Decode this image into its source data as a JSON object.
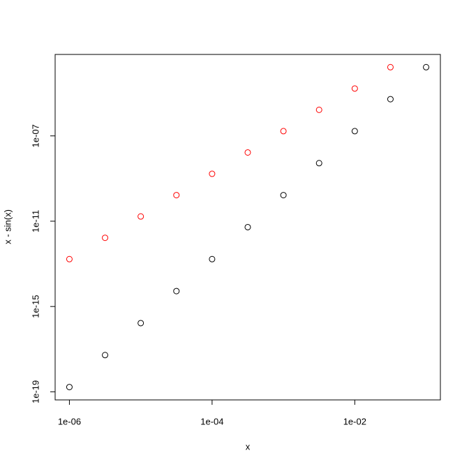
{
  "chart_data": {
    "type": "scatter",
    "xlabel": "x",
    "ylabel": "x - sin(x)",
    "xscale": "log",
    "yscale": "log",
    "xlim": [
      6.31e-07,
      0.1585
    ],
    "ylim": [
      4.17e-20,
      0.00066
    ],
    "xticks": [
      {
        "value": 1e-06,
        "label": "1e-06"
      },
      {
        "value": 0.0001,
        "label": "1e-04"
      },
      {
        "value": 0.01,
        "label": "1e-02"
      }
    ],
    "yticks": [
      {
        "value": 1e-19,
        "label": "1e-19"
      },
      {
        "value": 1e-15,
        "label": "1e-15"
      },
      {
        "value": 1e-11,
        "label": "1e-11"
      },
      {
        "value": 1e-07,
        "label": "1e-07"
      }
    ],
    "series": [
      {
        "color": "#000000",
        "x": [
          1e-06,
          3.162e-06,
          1e-05,
          3.162e-05,
          0.0001,
          0.0003162,
          0.001,
          0.003162,
          0.01,
          0.03162,
          0.1
        ],
        "values": [
          1.667e-19,
          5.27e-18,
          1.667e-16,
          5.27e-15,
          1.667e-13,
          5.27e-12,
          1.667e-10,
          5.27e-09,
          1.667e-07,
          5.27e-06,
          0.0001666
        ]
      },
      {
        "color": "#ff0000",
        "x": [
          1e-06,
          3.162e-06,
          1e-05,
          3.162e-05,
          0.0001,
          0.0003162,
          0.001,
          0.003162,
          0.01,
          0.03162
        ],
        "values": [
          1.667e-13,
          1.667e-12,
          1.667e-11,
          1.667e-10,
          1.667e-09,
          1.667e-08,
          1.667e-07,
          1.667e-06,
          1.667e-05,
          0.0001667
        ]
      }
    ]
  }
}
